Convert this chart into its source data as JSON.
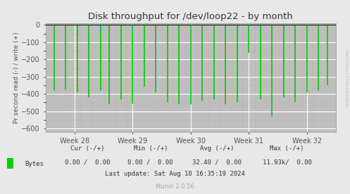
{
  "title": "Disk throughput for /dev/loop22 - by month",
  "ylabel": "Pr second read (-) / write (+)",
  "background_color": "#e8e8e8",
  "plot_background_color": "#bebebe",
  "grid_color_major": "#ffffff",
  "ylim": [
    -620,
    10
  ],
  "yticks": [
    0,
    -100,
    -200,
    -300,
    -400,
    -500,
    -600
  ],
  "xtick_labels": [
    "Week 28",
    "Week 29",
    "Week 30",
    "Week 31",
    "Week 32"
  ],
  "line_color": "#00cc00",
  "spike_x": [
    0.03,
    0.07,
    0.11,
    0.15,
    0.19,
    0.22,
    0.26,
    0.3,
    0.34,
    0.38,
    0.42,
    0.46,
    0.5,
    0.54,
    0.58,
    0.62,
    0.66,
    0.7,
    0.74,
    0.78,
    0.82,
    0.86,
    0.9,
    0.94,
    0.97
  ],
  "spike_y": [
    -380,
    -375,
    -390,
    -420,
    -380,
    -460,
    -430,
    -455,
    -360,
    -390,
    -450,
    -460,
    -460,
    -440,
    -430,
    -460,
    -450,
    -160,
    -430,
    -530,
    -420,
    -450,
    -390,
    -380,
    -350
  ],
  "watermark": "RRDTOOL / TOBI OETIKER",
  "legend_label": "Bytes",
  "legend_color": "#00cc00",
  "border_color": "#aaaaaa",
  "title_color": "#333333",
  "axis_color": "#555555",
  "ytick_color": "#555555",
  "xtick_color": "#555555",
  "footer_cur_label": "Cur (-/+)",
  "footer_min_label": "Min (-/+)",
  "footer_avg_label": "Avg (-/+)",
  "footer_max_label": "Max (-/+)",
  "footer_cur_val": "0.00 /  0.00",
  "footer_min_val": "0.00 /  0.00",
  "footer_avg_val": "32.40 /  0.00",
  "footer_max_val": "11.93k/  0.00",
  "footer_lastupdate": "Last update: Sat Aug 10 16:35:19 2024",
  "munin_label": "Munin 2.0.56"
}
